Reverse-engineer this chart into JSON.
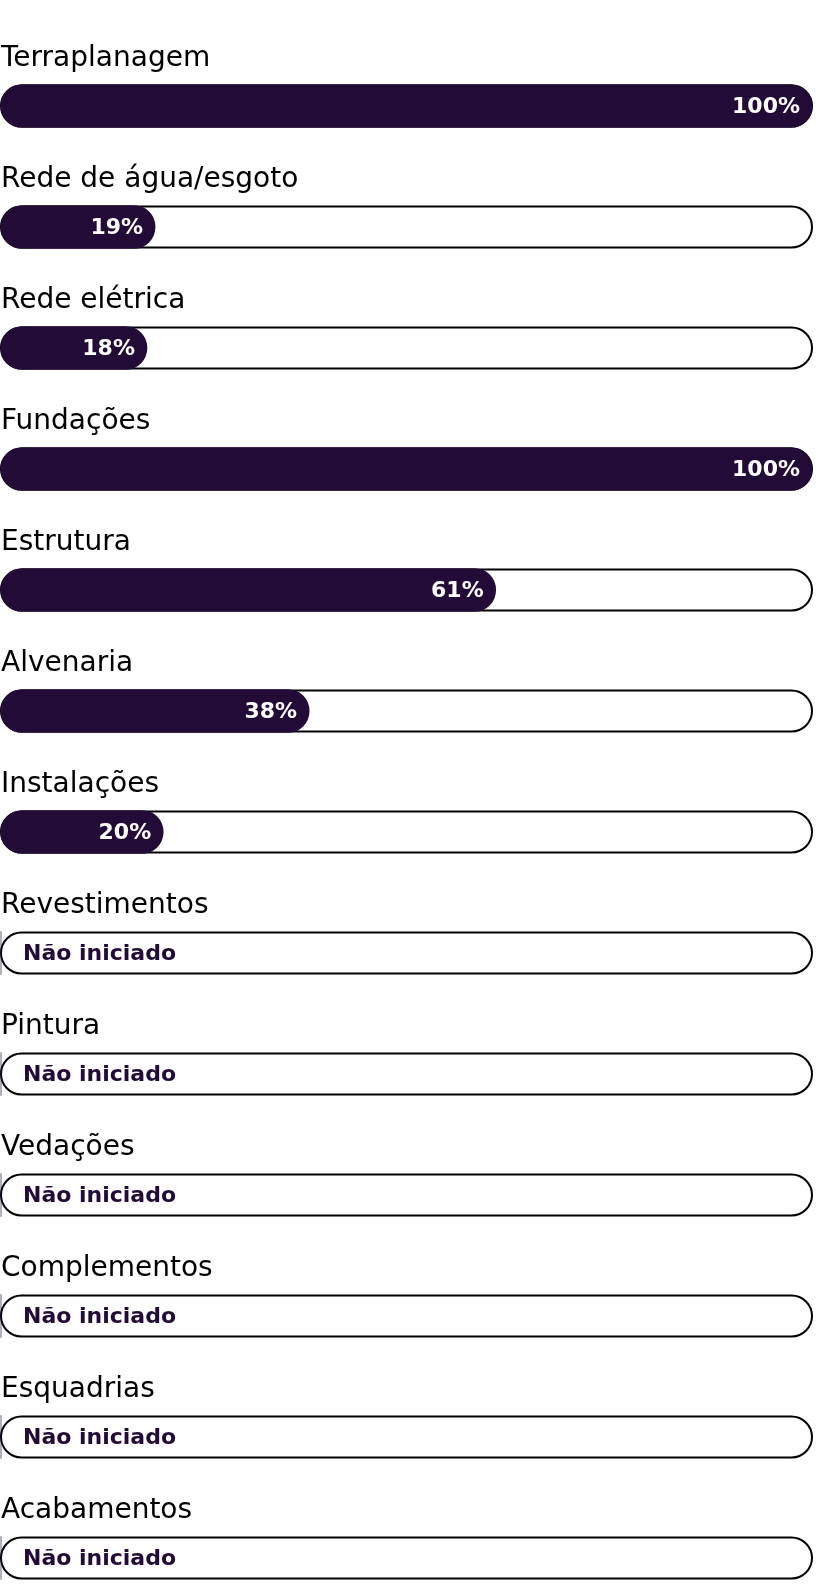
{
  "chart_data": {
    "type": "bar",
    "orientation": "horizontal",
    "categories": [
      "Terraplanagem",
      "Rede de água/esgoto",
      "Rede elétrica",
      "Fundações",
      "Estrutura",
      "Alvenaria",
      "Instalações",
      "Revestimentos",
      "Pintura",
      "Vedações",
      "Complementos",
      "Esquadrias",
      "Acabamentos"
    ],
    "values": [
      100,
      19,
      18,
      100,
      61,
      38,
      20,
      0,
      0,
      0,
      0,
      0,
      0
    ],
    "value_labels": [
      "100%",
      "19%",
      "18%",
      "100%",
      "61%",
      "38%",
      "20%",
      "Não iniciado",
      "Não iniciado",
      "Não iniciado",
      "Não iniciado",
      "Não iniciado",
      "Não iniciado"
    ],
    "color": "#230b37",
    "xlim": [
      0,
      100
    ],
    "tick_labels": "y"
  }
}
